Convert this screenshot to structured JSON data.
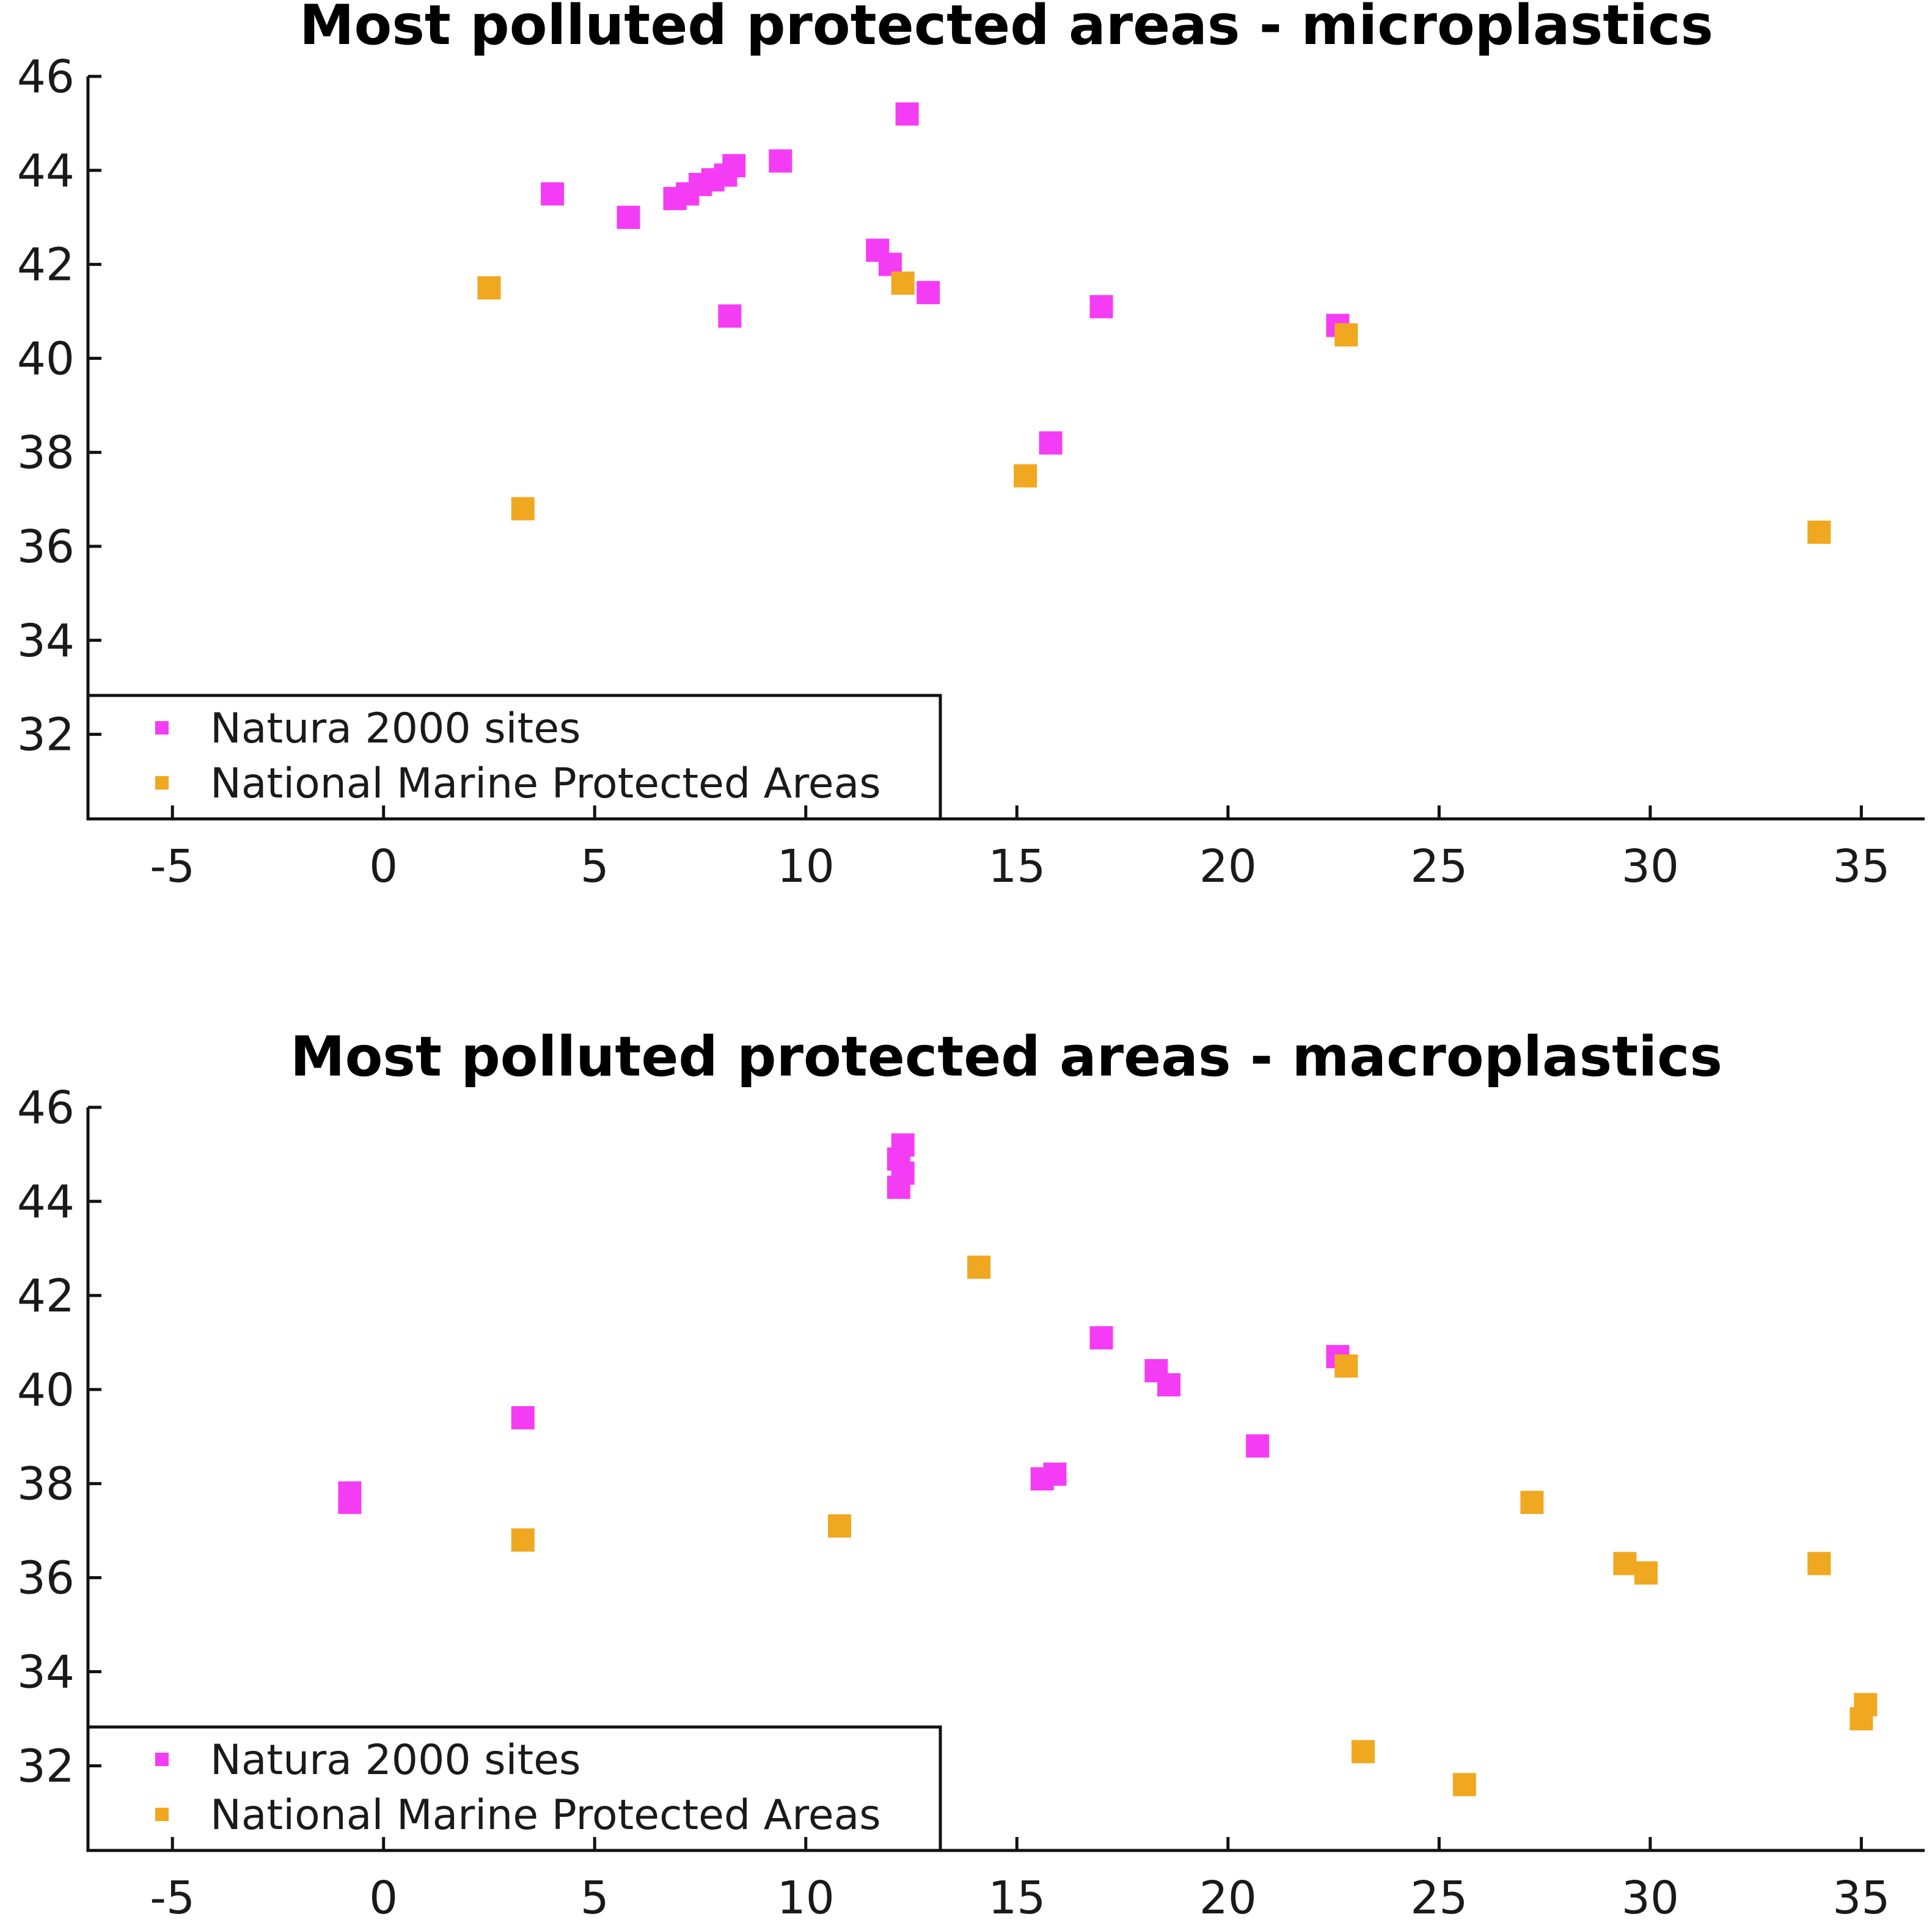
{
  "maps": [
    {
      "id": "microplastics",
      "title": "Most polluted protected areas - microplastics",
      "natura": [
        [
          12.4,
          45.2
        ],
        [
          4.0,
          43.5
        ],
        [
          5.8,
          43.0
        ],
        [
          6.9,
          43.4
        ],
        [
          7.2,
          43.5
        ],
        [
          7.5,
          43.7
        ],
        [
          7.8,
          43.8
        ],
        [
          8.1,
          43.9
        ],
        [
          8.3,
          44.1
        ],
        [
          9.4,
          44.2
        ],
        [
          11.7,
          42.3
        ],
        [
          12.0,
          42.0
        ],
        [
          12.9,
          41.4
        ],
        [
          8.2,
          40.9
        ],
        [
          17.0,
          41.1
        ],
        [
          15.8,
          38.2
        ],
        [
          22.6,
          40.7
        ]
      ],
      "mpa": [
        [
          2.5,
          41.5
        ],
        [
          12.3,
          41.6
        ],
        [
          15.2,
          37.5
        ],
        [
          3.3,
          36.8
        ],
        [
          22.8,
          40.5
        ],
        [
          34.0,
          36.3
        ]
      ]
    },
    {
      "id": "macroplastics",
      "title": "Most polluted protected areas - macroplastics",
      "natura": [
        [
          12.3,
          45.2
        ],
        [
          12.2,
          44.9
        ],
        [
          12.3,
          44.6
        ],
        [
          12.2,
          44.3
        ],
        [
          17.0,
          41.1
        ],
        [
          18.3,
          40.4
        ],
        [
          18.6,
          40.1
        ],
        [
          3.3,
          39.4
        ],
        [
          -0.8,
          37.8
        ],
        [
          -0.8,
          37.6
        ],
        [
          15.6,
          38.1
        ],
        [
          15.9,
          38.2
        ],
        [
          20.7,
          38.8
        ],
        [
          22.6,
          40.7
        ]
      ],
      "mpa": [
        [
          14.1,
          42.6
        ],
        [
          22.8,
          40.5
        ],
        [
          3.3,
          36.8
        ],
        [
          10.8,
          37.1
        ],
        [
          27.2,
          37.6
        ],
        [
          29.4,
          36.3
        ],
        [
          29.9,
          36.1
        ],
        [
          34.0,
          36.3
        ],
        [
          35.0,
          33.0
        ],
        [
          35.1,
          33.3
        ],
        [
          23.2,
          32.3
        ],
        [
          25.6,
          31.6
        ]
      ]
    }
  ],
  "axes": {
    "lon_ticks": [
      -5,
      0,
      5,
      10,
      15,
      20,
      25,
      30,
      35
    ],
    "lat_ticks": [
      32,
      34,
      36,
      38,
      40,
      42,
      44,
      46
    ],
    "lon_range": [
      -7,
      36.5
    ],
    "lat_range": [
      30.2,
      46
    ]
  },
  "legend": {
    "natura_label": "Natura 2000 sites",
    "mpa_label": "National Marine Protected Areas",
    "placement": "bottom-left"
  },
  "colors": {
    "natura": "#f53cf5",
    "mpa": "#f0a820",
    "land": "#c8c8c8",
    "sea": "#ffffff"
  }
}
